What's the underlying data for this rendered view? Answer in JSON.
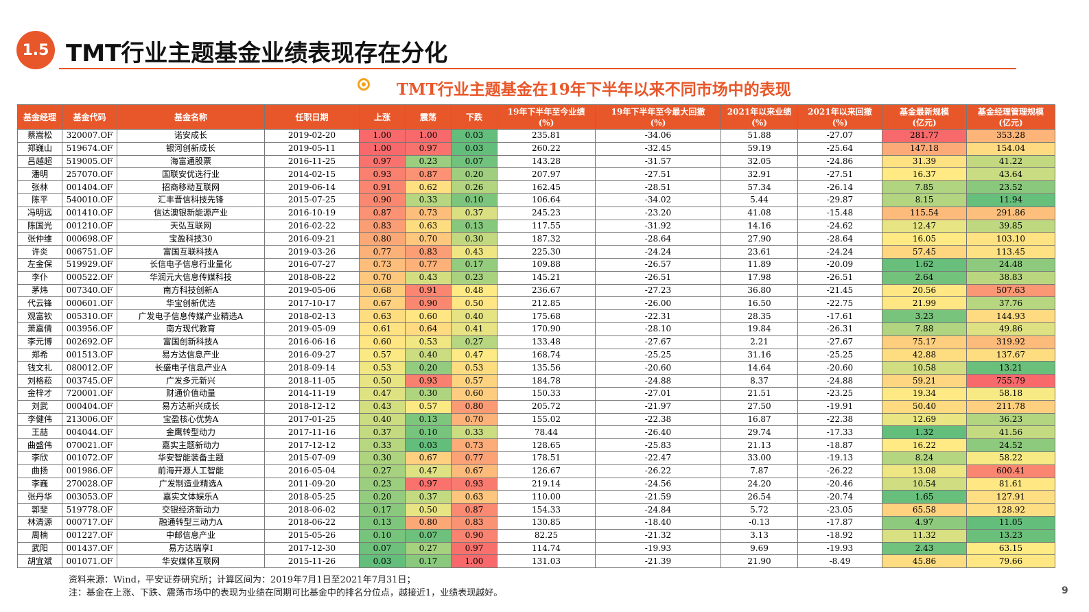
{
  "header": {
    "section": "1.5",
    "title": "TMT行业主题基金业绩表现存在分化"
  },
  "subtitle": "TMT行业主题基金在19年下半年以来不同市场中的表现",
  "table": {
    "color_scale": {
      "low": "#63be7b",
      "mid": "#ffeb84",
      "high": "#f8696b"
    },
    "header_color": "#e8572a",
    "columns": [
      "基金经理",
      "基金代码",
      "基金名称",
      "任职日期",
      "上涨",
      "震荡",
      "下跌",
      "19年下半年至今业绩\n(%)",
      "19年下半年至今最大回撤\n(%)",
      "2021年以来业绩\n(%)",
      "2021年以来回撤\n(%)",
      "基金最新规模\n(亿元)",
      "基金经理管理规模\n(亿元)"
    ],
    "rows": [
      [
        "蔡嵩松",
        "320007.OF",
        "诺安成长",
        "2019-02-20",
        "1.00",
        "1.00",
        "0.03",
        "235.81",
        "-34.06",
        "51.88",
        "-27.07",
        "281.77",
        "353.28"
      ],
      [
        "郑巍山",
        "519674.OF",
        "银河创新成长",
        "2019-05-11",
        "1.00",
        "0.97",
        "0.03",
        "260.22",
        "-32.45",
        "59.19",
        "-25.64",
        "147.18",
        "154.04"
      ],
      [
        "吕越超",
        "519005.OF",
        "海富通股票",
        "2016-11-25",
        "0.97",
        "0.23",
        "0.07",
        "143.28",
        "-31.57",
        "32.05",
        "-24.86",
        "31.39",
        "41.22"
      ],
      [
        "潘明",
        "257070.OF",
        "国联安优选行业",
        "2014-02-15",
        "0.93",
        "0.87",
        "0.20",
        "207.97",
        "-27.51",
        "32.91",
        "-27.51",
        "16.37",
        "43.64"
      ],
      [
        "张林",
        "001404.OF",
        "招商移动互联网",
        "2019-06-14",
        "0.91",
        "0.62",
        "0.26",
        "162.45",
        "-28.51",
        "57.34",
        "-26.14",
        "7.85",
        "23.52"
      ],
      [
        "陈平",
        "540010.OF",
        "汇丰晋信科技先锋",
        "2015-07-25",
        "0.90",
        "0.33",
        "0.10",
        "106.64",
        "-34.02",
        "5.44",
        "-29.87",
        "8.15",
        "11.94"
      ],
      [
        "冯明远",
        "001410.OF",
        "信达澳银新能源产业",
        "2016-10-19",
        "0.87",
        "0.73",
        "0.37",
        "245.23",
        "-23.20",
        "41.08",
        "-15.48",
        "115.54",
        "291.86"
      ],
      [
        "陈国光",
        "001210.OF",
        "天弘互联网",
        "2016-02-22",
        "0.83",
        "0.63",
        "0.13",
        "117.55",
        "-31.92",
        "14.16",
        "-24.62",
        "12.47",
        "39.85"
      ],
      [
        "张仲维",
        "000698.OF",
        "宝盈科技30",
        "2016-09-21",
        "0.80",
        "0.70",
        "0.30",
        "187.32",
        "-28.64",
        "27.90",
        "-28.64",
        "16.05",
        "103.10"
      ],
      [
        "许炎",
        "006751.OF",
        "富国互联科技A",
        "2019-03-26",
        "0.77",
        "0.83",
        "0.43",
        "225.30",
        "-24.24",
        "23.61",
        "-24.24",
        "57.45",
        "113.45"
      ],
      [
        "左金保",
        "519929.OF",
        "长信电子信息行业量化",
        "2016-07-27",
        "0.73",
        "0.77",
        "0.17",
        "109.88",
        "-26.57",
        "11.89",
        "-20.09",
        "1.62",
        "24.48"
      ],
      [
        "李仆",
        "000522.OF",
        "华润元大信息传媒科技",
        "2018-08-22",
        "0.70",
        "0.43",
        "0.23",
        "145.21",
        "-26.51",
        "17.98",
        "-26.51",
        "2.64",
        "38.83"
      ],
      [
        "茅炜",
        "007340.OF",
        "南方科技创新A",
        "2019-05-06",
        "0.68",
        "0.91",
        "0.48",
        "236.67",
        "-27.23",
        "36.80",
        "-21.45",
        "20.56",
        "507.63"
      ],
      [
        "代云锋",
        "000601.OF",
        "华宝创新优选",
        "2017-10-17",
        "0.67",
        "0.90",
        "0.50",
        "212.85",
        "-26.00",
        "16.50",
        "-22.75",
        "21.99",
        "37.76"
      ],
      [
        "观富钦",
        "005310.OF",
        "广发电子信息传媒产业精选A",
        "2018-02-13",
        "0.63",
        "0.60",
        "0.40",
        "175.68",
        "-22.31",
        "28.35",
        "-17.61",
        "3.23",
        "144.93"
      ],
      [
        "萧嘉倩",
        "003956.OF",
        "南方现代教育",
        "2019-05-09",
        "0.61",
        "0.64",
        "0.41",
        "170.90",
        "-28.10",
        "19.84",
        "-26.31",
        "7.88",
        "49.86"
      ],
      [
        "李元博",
        "002692.OF",
        "富国创新科技A",
        "2016-06-16",
        "0.60",
        "0.53",
        "0.27",
        "133.48",
        "-27.67",
        "2.21",
        "-27.67",
        "75.17",
        "319.92"
      ],
      [
        "郑希",
        "001513.OF",
        "易方达信息产业",
        "2016-09-27",
        "0.57",
        "0.40",
        "0.47",
        "168.74",
        "-25.25",
        "31.16",
        "-25.25",
        "42.88",
        "137.67"
      ],
      [
        "钱文礼",
        "080012.OF",
        "长盛电子信息产业A",
        "2018-09-14",
        "0.53",
        "0.20",
        "0.53",
        "135.56",
        "-20.60",
        "14.64",
        "-20.60",
        "10.58",
        "13.21"
      ],
      [
        "刘格菘",
        "003745.OF",
        "广发多元新兴",
        "2018-11-05",
        "0.50",
        "0.93",
        "0.57",
        "184.78",
        "-24.88",
        "8.37",
        "-24.88",
        "59.21",
        "755.79"
      ],
      [
        "金梓才",
        "720001.OF",
        "财通价值动量",
        "2014-11-19",
        "0.47",
        "0.30",
        "0.60",
        "150.33",
        "-27.01",
        "21.51",
        "-23.25",
        "19.34",
        "58.18"
      ],
      [
        "刘武",
        "000404.OF",
        "易方达新兴成长",
        "2018-12-12",
        "0.43",
        "0.57",
        "0.80",
        "205.72",
        "-21.97",
        "27.50",
        "-19.91",
        "50.40",
        "211.78"
      ],
      [
        "李健伟",
        "213006.OF",
        "宝盈核心优势A",
        "2017-01-25",
        "0.40",
        "0.13",
        "0.70",
        "155.02",
        "-22.38",
        "16.87",
        "-22.38",
        "12.69",
        "36.23"
      ],
      [
        "王喆",
        "004044.OF",
        "金鹰转型动力",
        "2017-11-16",
        "0.37",
        "0.10",
        "0.33",
        "78.44",
        "-26.40",
        "29.74",
        "-17.33",
        "1.32",
        "41.56"
      ],
      [
        "曲盛伟",
        "070021.OF",
        "嘉实主题新动力",
        "2017-12-12",
        "0.33",
        "0.03",
        "0.73",
        "128.65",
        "-25.83",
        "21.13",
        "-18.87",
        "16.22",
        "24.52"
      ],
      [
        "李欣",
        "001072.OF",
        "华安智能装备主题",
        "2015-07-09",
        "0.30",
        "0.67",
        "0.77",
        "178.51",
        "-22.47",
        "33.00",
        "-19.13",
        "8.24",
        "58.22"
      ],
      [
        "曲扬",
        "001986.OF",
        "前海开源人工智能",
        "2016-05-04",
        "0.27",
        "0.47",
        "0.67",
        "126.67",
        "-26.22",
        "7.87",
        "-26.22",
        "13.08",
        "600.41"
      ],
      [
        "李巍",
        "270028.OF",
        "广发制造业精选A",
        "2011-09-20",
        "0.23",
        "0.97",
        "0.93",
        "219.14",
        "-24.56",
        "24.20",
        "-20.46",
        "10.54",
        "81.61"
      ],
      [
        "张丹华",
        "003053.OF",
        "嘉实文体娱乐A",
        "2018-05-25",
        "0.20",
        "0.37",
        "0.63",
        "110.00",
        "-21.59",
        "26.54",
        "-20.74",
        "1.65",
        "127.91"
      ],
      [
        "郭斐",
        "519778.OF",
        "交银经济新动力",
        "2018-06-02",
        "0.17",
        "0.50",
        "0.87",
        "154.33",
        "-24.84",
        "5.72",
        "-23.05",
        "65.58",
        "128.92"
      ],
      [
        "林清源",
        "000717.OF",
        "融通转型三动力A",
        "2018-06-22",
        "0.13",
        "0.80",
        "0.83",
        "130.85",
        "-18.40",
        "-0.13",
        "-17.87",
        "4.97",
        "11.05"
      ],
      [
        "周楠",
        "001227.OF",
        "中邮信息产业",
        "2015-05-26",
        "0.10",
        "0.07",
        "0.90",
        "82.25",
        "-21.32",
        "3.13",
        "-18.92",
        "11.32",
        "13.23"
      ],
      [
        "武阳",
        "001437.OF",
        "易方达瑞享I",
        "2017-12-30",
        "0.07",
        "0.27",
        "0.97",
        "114.74",
        "-19.93",
        "9.69",
        "-19.93",
        "2.43",
        "63.15"
      ],
      [
        "胡宜斌",
        "001071.OF",
        "华安媒体互联网",
        "2015-11-26",
        "0.03",
        "0.17",
        "1.00",
        "131.03",
        "-21.39",
        "21.90",
        "-8.49",
        "45.86",
        "79.66"
      ]
    ]
  },
  "footnotes": [
    "资料来源：Wind，平安证券研究所；计算区间为：2019年7月1日至2021年7月31日；",
    "注：基金在上涨、下跌、震荡市场中的表现为业绩在同期可比基金中的排名分位点，越接近1，业绩表现越好。"
  ],
  "page_number": "9"
}
